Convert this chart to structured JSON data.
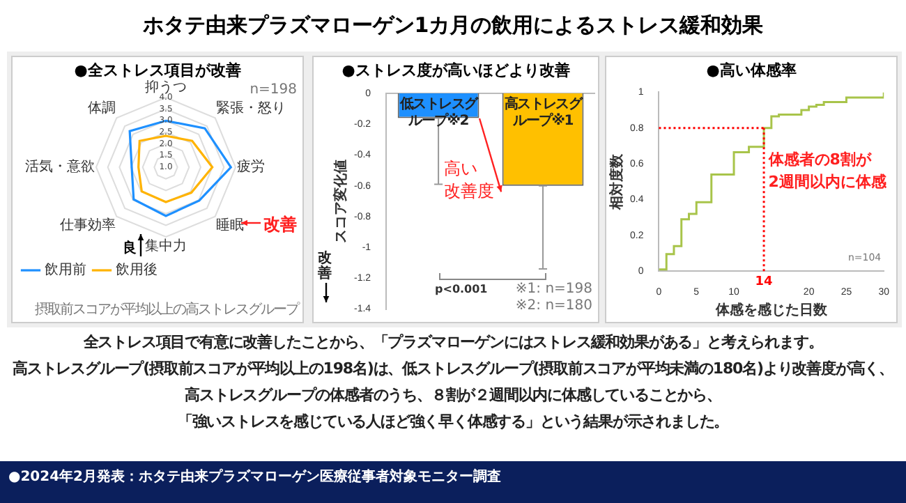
{
  "chart_data": [
    {
      "type": "other",
      "title": "ホタテ由来プラズマローゲン1カ月の飲用によるストレス緩和効果"
    },
    {
      "type": "radar",
      "title": "●全ストレス項目が改善",
      "categories": [
        "抑うつ",
        "緊張・怒り",
        "疲労",
        "睡眠",
        "集中力",
        "仕事効率",
        "活気・意欲",
        "体調"
      ],
      "series": [
        {
          "name": "飲用前",
          "color": "#1e90ff",
          "values": [
            3.0,
            3.37,
            3.8,
            3.03,
            3.1,
            2.96,
            2.47,
            3.2
          ]
        },
        {
          "name": "飲用後",
          "color": "#ffb300",
          "values": [
            2.35,
            2.6,
            3.0,
            2.55,
            2.5,
            2.47,
            2.18,
            2.6
          ]
        }
      ],
      "ylim": [
        1,
        4
      ],
      "yticks": [
        {
          "value": 1,
          "label": "1.0"
        },
        1.5,
        {
          "value": 2,
          "label": "2.0"
        },
        2.5,
        {
          "value": 3,
          "label": "3.0"
        },
        3.5,
        {
          "value": 4,
          "label": "4.0"
        }
      ],
      "grid": true,
      "legend": "bottom left",
      "marker": "none",
      "annotations": [
        "改善",
        "良",
        "n=198",
        "摂取前スコアが平均以上の高ストレスグループ"
      ]
    },
    {
      "type": "bar",
      "title": "●ストレス度が高いほどより改善",
      "ylabel": "スコア変化値",
      "categories": [
        "低ストレスグループ※2",
        "高ストレスグループ※1"
      ],
      "values": [
        -0.16,
        -0.6
      ],
      "colors": [
        "#1e90ff",
        "#ffc000"
      ],
      "errors": [
        [
          -0.59,
          -0.16
        ],
        [
          -1.14,
          -0.6
        ]
      ],
      "ylim": [
        -1.4,
        0
      ],
      "yticks": [
        0,
        -0.2,
        -0.4,
        -0.6,
        -0.8,
        -1,
        -1.2,
        -1.4
      ],
      "tick_labels": "y",
      "annotations": [
        "高い",
        "改善度",
        "p<0.001",
        "※1: n=198",
        "※2: n=180",
        "改善"
      ]
    },
    {
      "type": "step",
      "title": "●高い体感率",
      "xlabel": "体感を感じた日数",
      "ylabel": "相対度数",
      "color": "#a8c44a",
      "marker": "none",
      "x": [
        0,
        1,
        2,
        3,
        4,
        5,
        7,
        10,
        12,
        14,
        15,
        16,
        19,
        20,
        21,
        22,
        25,
        30
      ],
      "values": [
        0.01,
        0.095,
        0.14,
        0.29,
        0.32,
        0.385,
        0.54,
        0.665,
        0.695,
        0.8,
        0.865,
        0.875,
        0.9,
        0.92,
        0.93,
        0.945,
        0.97,
        1
      ],
      "xlim": [
        0,
        30
      ],
      "xticks": [
        0,
        5,
        10,
        20,
        25,
        30
      ],
      "ylim": [
        0,
        1
      ],
      "yticks": [
        0,
        0.2,
        0.4,
        0.6,
        0.8,
        1
      ],
      "ref_lines": [
        {
          "axis": "y",
          "value": 0.8,
          "color": "#ff0000",
          "line_style": "dotted"
        },
        {
          "axis": "x",
          "value": 14,
          "label": "14",
          "color": "#ff0000",
          "line_style": "dotted"
        }
      ],
      "annotations": [
        "体感者の8割が",
        "2週間以内に体感",
        "n=104"
      ]
    },
    {
      "type": "other",
      "annotations": [
        "全ストレス項目で有意に改善したことから、「プラズマローゲンにはストレス緩和効果がある」と考えられます。",
        "高ストレスグループ(摂取前スコアが平均以上の198名)は、低ストレスグループ(摂取前スコアが平均未満の180名)より改善度が高く、",
        "高ストレスグループの体感者のうち、８割が２週間以内に体感していることから、",
        "「強いストレスを感じている人ほど強く早く体感する」という結果が示されました。",
        "●2024年2月発表：ホタテ由来プラズマローゲン医療従事者対象モニター調査"
      ]
    }
  ]
}
